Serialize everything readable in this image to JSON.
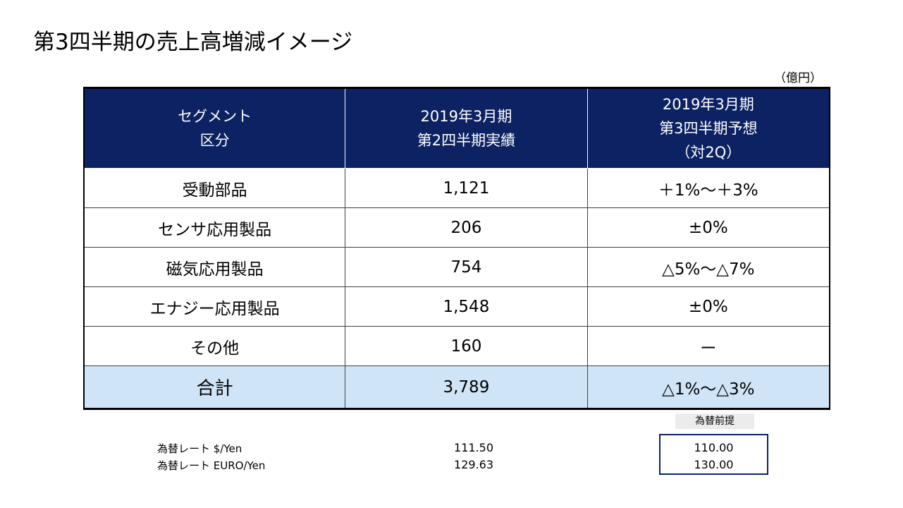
{
  "page": {
    "title": "第3四半期の売上高増減イメージ",
    "unit": "（億円）"
  },
  "table": {
    "headers": [
      {
        "lines": [
          "セグメント",
          "区分"
        ]
      },
      {
        "lines": [
          "2019年3月期",
          "第2四半期実績"
        ]
      },
      {
        "lines": [
          "2019年3月期",
          "第3四半期予想",
          "（対2Q）"
        ]
      }
    ],
    "rows": [
      {
        "segment": "受動部品",
        "actual": "1,121",
        "forecast": "＋1%～＋3%"
      },
      {
        "segment": "センサ応用製品",
        "actual": "206",
        "forecast": "±0%"
      },
      {
        "segment": "磁気応用製品",
        "actual": "754",
        "forecast": "△5%～△7%"
      },
      {
        "segment": "エナジー応用製品",
        "actual": "1,548",
        "forecast": "±0%"
      },
      {
        "segment": "その他",
        "actual": "160",
        "forecast": "ー"
      }
    ],
    "total": {
      "segment": "合計",
      "actual": "3,789",
      "forecast": "△1%～△3%"
    }
  },
  "fx": {
    "assumption_label": "為替前提",
    "rows": [
      {
        "label": "為替レート $/Yen",
        "actual": "111.50",
        "assumed": "110.00"
      },
      {
        "label": "為替レート EURO/Yen",
        "actual": "129.63",
        "assumed": "130.00"
      }
    ]
  },
  "colors": {
    "header_bg": "#0c2262",
    "total_bg": "#cfe4f7",
    "fx_header_bg": "#ececec"
  }
}
